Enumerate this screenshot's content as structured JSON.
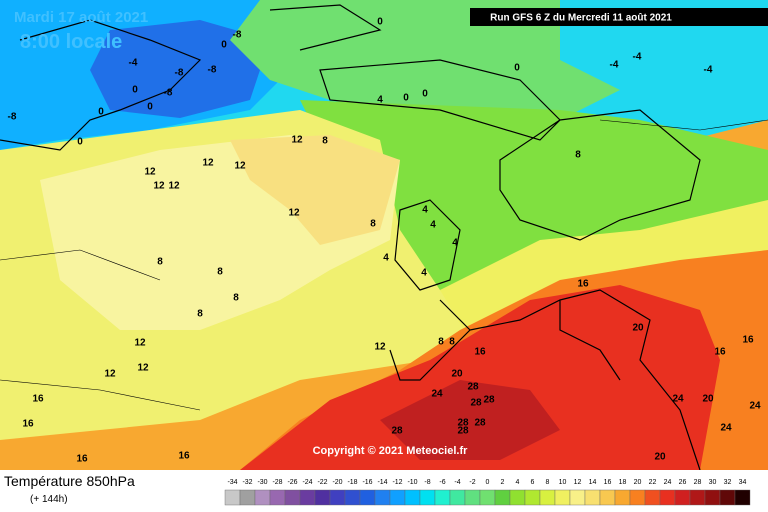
{
  "date": "Mardi 17 août 2021",
  "time": "8:00 locale",
  "run": "Run GFS 6 Z du Mercredi 11 août 2021",
  "copyright": "Copyright © 2021 Meteociel.fr",
  "field": "Température 850hPa",
  "lead": "(+ 144h)",
  "contour_labels": [
    0,
    0,
    -8,
    -4,
    -8,
    -8,
    0,
    -8,
    0,
    0,
    0,
    -8,
    0,
    4,
    0,
    0,
    -4,
    -4,
    -4,
    12,
    8,
    12,
    12,
    12,
    12,
    12,
    12,
    8,
    8,
    4,
    4,
    4,
    4,
    4,
    8,
    8,
    8,
    8,
    12,
    12,
    12,
    12,
    8,
    8,
    16,
    16,
    20,
    16,
    16,
    20,
    28,
    24,
    28,
    28,
    28,
    28,
    28,
    28,
    24,
    20,
    24,
    24,
    20,
    16,
    16,
    16,
    16
  ],
  "scale": {
    "values": [
      -34,
      -32,
      -30,
      -28,
      -26,
      -24,
      -22,
      -20,
      -18,
      -16,
      -14,
      -12,
      -10,
      -8,
      -6,
      -4,
      -2,
      0,
      2,
      4,
      6,
      8,
      10,
      12,
      14,
      16,
      18,
      20,
      22,
      24,
      26,
      28,
      30,
      32,
      34
    ],
    "colors": [
      "#c8c8c8",
      "#a0a0a0",
      "#b090c0",
      "#9868b0",
      "#8050a0",
      "#6a3ca0",
      "#5030a0",
      "#4040c0",
      "#3050d0",
      "#2060e0",
      "#2080f0",
      "#10a0ff",
      "#00c0ff",
      "#00e0f0",
      "#20f0d0",
      "#40e8a0",
      "#60e080",
      "#70e070",
      "#60d040",
      "#90e030",
      "#b0e830",
      "#d8f040",
      "#f0f060",
      "#f8f088",
      "#f8e070",
      "#f8c850",
      "#f8a830",
      "#f88020",
      "#f05020",
      "#e83020",
      "#d02020",
      "#b01818",
      "#901010",
      "#600808",
      "#200000"
    ]
  }
}
